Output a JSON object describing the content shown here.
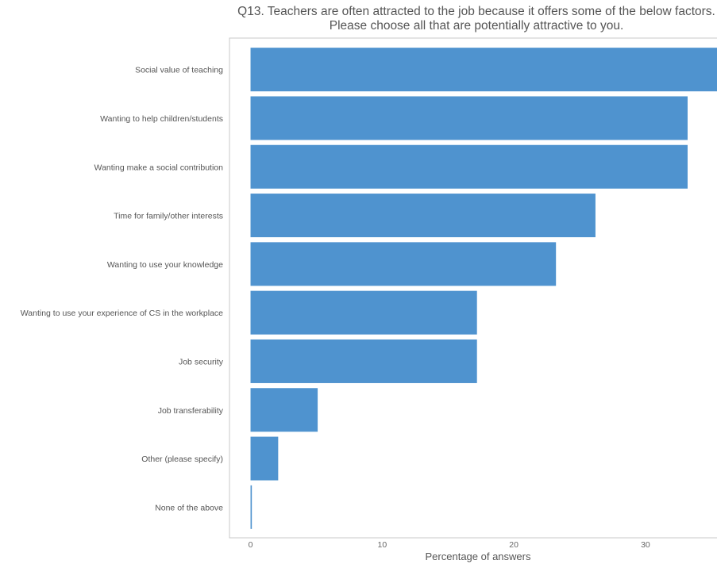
{
  "chart_data": {
    "type": "bar",
    "orientation": "horizontal",
    "title_line1": "Q13. Teachers are often attracted to the job because it offers some of the below factors.",
    "title_line2": "Please choose all that are potentially attractive to you.",
    "xlabel": "Percentage of answers",
    "ylabel": "",
    "xlim": [
      -1.6,
      37
    ],
    "xticks": [
      0,
      10,
      20,
      30
    ],
    "categories": [
      "Social value of teaching",
      "Wanting to help children/students",
      "Wanting make a social contribution",
      "Time for family/other interests",
      "Wanting to use your knowledge",
      "Wanting to use your experience of CS in the workplace",
      "Job security",
      "Job transferability",
      "Other (please specify)",
      "None of the above"
    ],
    "values": [
      36.2,
      33.2,
      33.2,
      26.2,
      23.2,
      17.2,
      17.2,
      5.1,
      2.1,
      0.1
    ],
    "bar_color": "#4f93cf",
    "grid": false
  }
}
